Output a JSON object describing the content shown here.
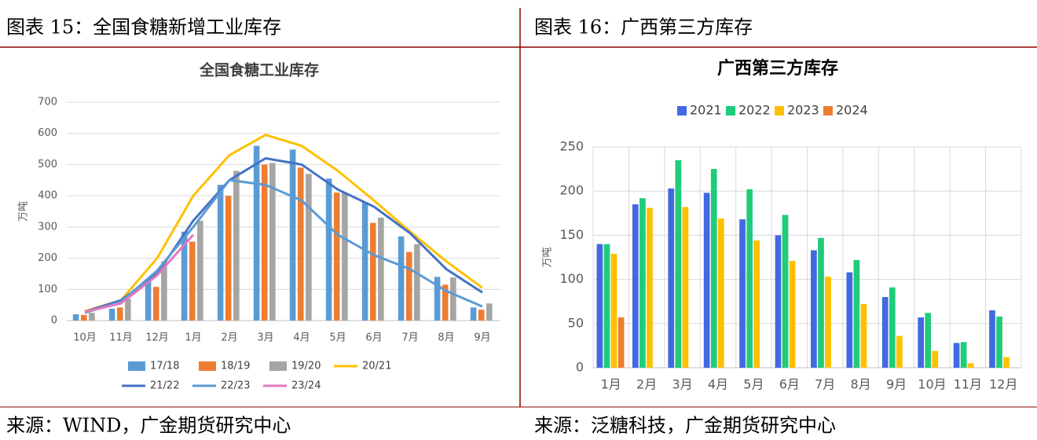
{
  "panels": [
    {
      "title": "图表 15：全国食糖新增工业库存",
      "source": "来源：WIND，广金期货研究中心"
    },
    {
      "title": "图表 16：广西第三方库存",
      "source": "来源：泛糖科技，广金期货研究中心"
    }
  ],
  "chart_data": [
    {
      "type": "bar",
      "title": "全国食糖工业库存",
      "ylabel": "万吨",
      "categories": [
        "10月",
        "11月",
        "12月",
        "1月",
        "2月",
        "3月",
        "4月",
        "5月",
        "6月",
        "7月",
        "8月",
        "9月"
      ],
      "series": [
        {
          "name": "17/18",
          "type": "bar",
          "color": "#5b9bd5",
          "values": [
            20,
            38,
            125,
            285,
            435,
            560,
            548,
            455,
            380,
            270,
            140,
            42
          ]
        },
        {
          "name": "18/19",
          "type": "bar",
          "color": "#ed7d31",
          "values": [
            18,
            42,
            108,
            253,
            400,
            500,
            490,
            410,
            313,
            220,
            115,
            35
          ]
        },
        {
          "name": "19/20",
          "type": "bar",
          "color": "#a5a5a5",
          "values": [
            25,
            70,
            190,
            320,
            480,
            505,
            470,
            410,
            330,
            245,
            138,
            55
          ]
        },
        {
          "name": "20/21",
          "type": "line",
          "color": "#ffc000",
          "values": [
            30,
            65,
            200,
            400,
            530,
            595,
            560,
            480,
            385,
            285,
            190,
            105
          ]
        },
        {
          "name": "21/22",
          "type": "line",
          "color": "#4472c4",
          "values": [
            28,
            65,
            150,
            320,
            450,
            520,
            500,
            420,
            365,
            280,
            165,
            90
          ]
        },
        {
          "name": "22/23",
          "type": "line",
          "color": "#5b9bd5",
          "values": [
            25,
            60,
            160,
            300,
            450,
            435,
            385,
            275,
            210,
            165,
            95,
            45
          ]
        },
        {
          "name": "23/24",
          "type": "line",
          "color": "#e377c2",
          "values": [
            28,
            55,
            145,
            275,
            null,
            null,
            null,
            null,
            null,
            null,
            null,
            null
          ]
        }
      ],
      "ylim": [
        0,
        700
      ],
      "yticks": [
        0,
        100,
        200,
        300,
        400,
        500,
        600,
        700
      ],
      "grid": true,
      "xgrid": false,
      "legend": "bottom"
    },
    {
      "type": "bar",
      "title": "广西第三方库存",
      "ylabel": "万吨",
      "categories": [
        "1月",
        "2月",
        "3月",
        "4月",
        "5月",
        "6月",
        "7月",
        "8月",
        "9月",
        "10月",
        "11月",
        "12月"
      ],
      "series": [
        {
          "name": "2021",
          "type": "bar",
          "color": "#4169e1",
          "values": [
            140,
            185,
            203,
            198,
            168,
            150,
            133,
            108,
            80,
            57,
            28,
            65
          ]
        },
        {
          "name": "2022",
          "type": "bar",
          "color": "#1fcc7a",
          "values": [
            140,
            192,
            235,
            225,
            202,
            173,
            147,
            122,
            91,
            62,
            29,
            58
          ]
        },
        {
          "name": "2023",
          "type": "bar",
          "color": "#ffc000",
          "values": [
            129,
            181,
            182,
            169,
            144,
            121,
            103,
            72,
            36,
            19,
            5,
            12
          ]
        },
        {
          "name": "2024",
          "type": "bar",
          "color": "#ed7d31",
          "values": [
            57,
            null,
            null,
            null,
            null,
            null,
            null,
            null,
            null,
            null,
            null,
            null
          ]
        }
      ],
      "ylim": [
        0,
        250
      ],
      "yticks": [
        0,
        50,
        100,
        150,
        200,
        250
      ],
      "grid": true,
      "xgrid": true,
      "legend": "top"
    }
  ]
}
